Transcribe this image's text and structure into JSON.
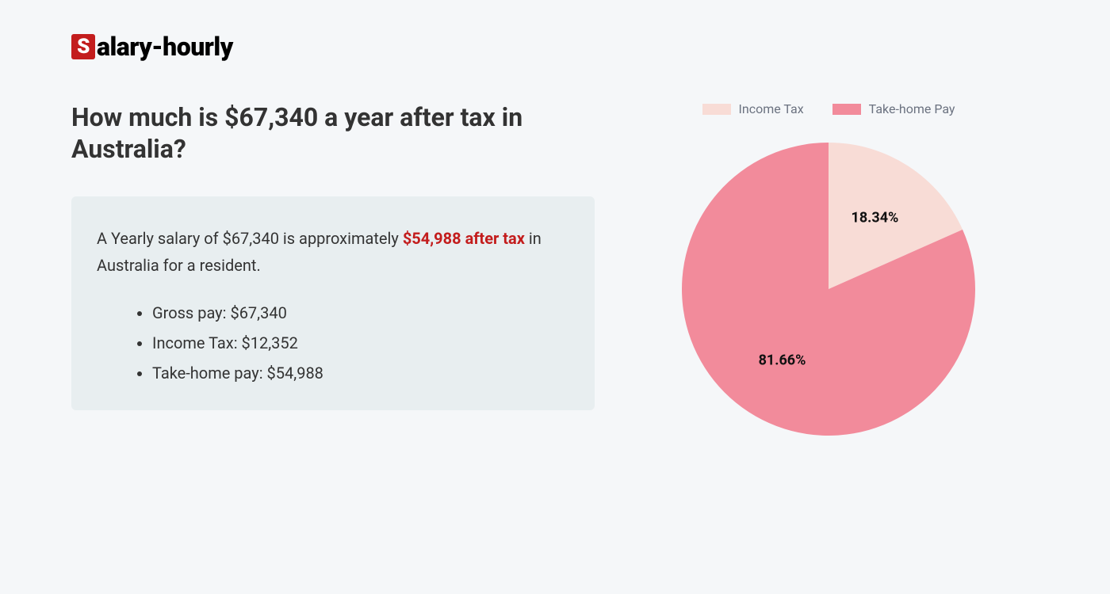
{
  "brand": {
    "badge_letter": "S",
    "rest": "alary-hourly",
    "badge_bg": "#c31d1d",
    "badge_fg": "#ffffff",
    "text_color": "#000000"
  },
  "heading": "How much is $67,340 a year after tax in Australia?",
  "summary": {
    "pre": "A Yearly salary of $67,340 is approximately ",
    "highlight": "$54,988 after tax",
    "post": " in Australia for a resident.",
    "highlight_color": "#c31d1d",
    "box_bg": "#e8eef0"
  },
  "bullets": [
    "Gross pay: $67,340",
    "Income Tax: $12,352",
    "Take-home pay: $54,988"
  ],
  "chart": {
    "type": "pie",
    "background_color": "#f5f7f9",
    "legend_position": "top",
    "legend_text_color": "#6b7280",
    "legend_fontsize": 16,
    "label_fontsize": 18,
    "label_fontweight": 700,
    "label_color": "#111111",
    "radius": 185,
    "start_angle_deg": 0,
    "slices": [
      {
        "label": "Income Tax",
        "value": 18.34,
        "display": "18.34%",
        "color": "#f8dcd6"
      },
      {
        "label": "Take-home Pay",
        "value": 81.66,
        "display": "81.66%",
        "color": "#f28b9b"
      }
    ]
  },
  "page_bg": "#f5f7f9",
  "text_color": "#333333"
}
